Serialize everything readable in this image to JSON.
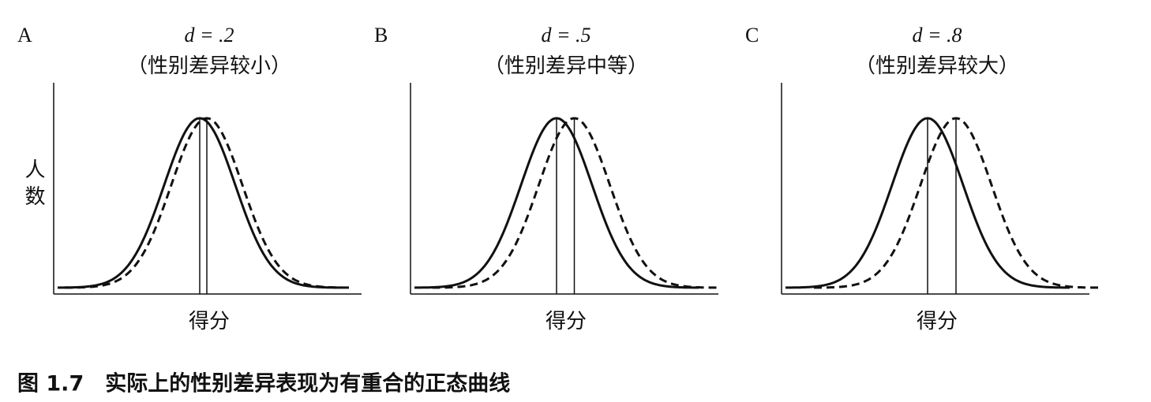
{
  "chart_data": [
    {
      "type": "normal-pair",
      "panel": "A",
      "title": "d = .2",
      "subtitle": "（性别差异较小）",
      "d": 0.2,
      "ylabel": "人数",
      "xlabel": "得分",
      "color": "#111111"
    },
    {
      "type": "normal-pair",
      "panel": "B",
      "title": "d = .5",
      "subtitle": "（性别差异中等）",
      "d": 0.5,
      "xlabel": "得分",
      "color": "#111111"
    },
    {
      "type": "normal-pair",
      "panel": "C",
      "title": "d = .8",
      "subtitle": "（性别差异较大）",
      "d": 0.8,
      "xlabel": "得分",
      "color": "#111111"
    }
  ],
  "caption": "图 1.7　实际上的性别差异表现为有重合的正态曲线"
}
